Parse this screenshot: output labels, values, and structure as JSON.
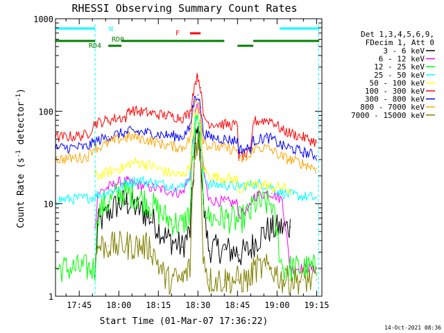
{
  "chart_data": {
    "type": "line",
    "title": "RHESSI Observing Summary Count Rates",
    "xlabel": "Start Time (01-Mar-07 17:36:22)",
    "ylabel": "Count Rate (s-1 detector-1)",
    "ylabel_parts": {
      "pre": "Count Rate (s",
      "sup1": "-1",
      "mid": " detector",
      "sup2": "-1",
      "post": ")"
    },
    "yscale": "log",
    "ylim": [
      1,
      1000
    ],
    "xlim_minutes": [
      1056,
      1157
    ],
    "x_ticks": [
      {
        "label": "17:45",
        "value": 1065
      },
      {
        "label": "18:00",
        "value": 1080
      },
      {
        "label": "18:15",
        "value": 1095
      },
      {
        "label": "18:30",
        "value": 1110
      },
      {
        "label": "18:45",
        "value": 1125
      },
      {
        "label": "19:00",
        "value": 1140
      },
      {
        "label": "19:15",
        "value": 1155
      }
    ],
    "y_ticks": [
      {
        "label": "1",
        "value": 1
      },
      {
        "label": "10",
        "value": 10
      },
      {
        "label": "100",
        "value": 100
      },
      {
        "label": "1000",
        "value": 1000
      }
    ],
    "legend_header": [
      "Det 1,3,4,5,6,9,",
      "FDecim 1, Att 0"
    ],
    "legend_position": "right",
    "timestamp": "14-Oct-2021 08:36",
    "flags": [
      {
        "label": "N",
        "color": "#00ffff",
        "segments": [
          [
            1056,
            1071
          ],
          [
            1141,
            1156
          ]
        ]
      },
      {
        "label": "F",
        "color": "#ff0000",
        "segments": [
          [
            1107,
            1111
          ]
        ]
      },
      {
        "label": "RD0",
        "color": "#008000",
        "segments": [
          [
            1081,
            1120
          ]
        ]
      },
      {
        "label": "RD4",
        "color": "#008000",
        "segments": [
          [
            1056,
            1071
          ],
          [
            1076,
            1081
          ],
          [
            1125,
            1131
          ],
          [
            1131,
            1156
          ]
        ]
      }
    ],
    "dashed_lines": [
      1071,
      1155.7
    ],
    "x": [
      1056,
      1068,
      1071,
      1072,
      1076,
      1080,
      1083,
      1083.5,
      1087,
      1092,
      1098,
      1104,
      1107,
      1108,
      1109,
      1110,
      1111,
      1112,
      1114,
      1120,
      1125,
      1125.5,
      1130,
      1131,
      1136,
      1138,
      1142,
      1145,
      1150,
      1155
    ],
    "series": [
      {
        "name": "3 - 6 keV",
        "color": "#000000",
        "values": [
          null,
          null,
          1.6,
          6.0,
          8.0,
          10.0,
          10.5,
          10.0,
          9.0,
          7.0,
          4.3,
          3.4,
          5.0,
          15.0,
          45.0,
          60.0,
          38.0,
          10.0,
          3.3,
          3.2,
          3.0,
          2.8,
          3.2,
          3.7,
          5.2,
          5.3,
          5.5,
          5.6,
          null,
          null
        ]
      },
      {
        "name": "6 - 12 keV",
        "color": "#ff00ff",
        "values": [
          null,
          null,
          5.5,
          13.0,
          15.0,
          17.0,
          17.5,
          17.0,
          16.0,
          15.0,
          14.0,
          13.0,
          20.0,
          45.0,
          90.0,
          120.0,
          80.0,
          25.0,
          11.0,
          10.5,
          10.0,
          7.5,
          9.0,
          12.0,
          13.0,
          13.0,
          11.0,
          2.0,
          2.0,
          2.0
        ]
      },
      {
        "name": "12 - 25 keV",
        "color": "#00ff00",
        "values": [
          2.0,
          2.0,
          2.0,
          8.0,
          10.5,
          13.0,
          13.2,
          13.0,
          12.0,
          10.0,
          7.0,
          5.8,
          8.0,
          30.0,
          65.0,
          75.0,
          50.0,
          12.0,
          7.0,
          7.0,
          6.5,
          6.5,
          8.0,
          10.0,
          10.0,
          10.0,
          2.0,
          2.0,
          2.0,
          2.0
        ]
      },
      {
        "name": "25 - 50 keV",
        "color": "#00ffff",
        "values": [
          11.0,
          11.5,
          12.0,
          12.5,
          13.5,
          14.5,
          17.0,
          17.0,
          18.0,
          17.0,
          16.0,
          15.0,
          20.0,
          50.0,
          80.0,
          90.0,
          60.0,
          22.0,
          16.0,
          16.0,
          15.5,
          15.5,
          16.0,
          16.5,
          16.0,
          15.0,
          13.0,
          12.5,
          12.0,
          11.5
        ]
      },
      {
        "name": "50 - 100 keV",
        "color": "#ffff00",
        "values": [
          null,
          null,
          20.0,
          20.0,
          22.0,
          24.0,
          25.0,
          27.0,
          28.0,
          26.0,
          22.0,
          20.0,
          25.0,
          55.0,
          90.0,
          100.0,
          65.0,
          25.0,
          20.0,
          19.0,
          18.0,
          14.0,
          16.0,
          16.0,
          16.0,
          15.0,
          15.0,
          14.0,
          null,
          null
        ]
      },
      {
        "name": "100 - 300 keV",
        "color": "#ff0000",
        "values": [
          52.0,
          55.0,
          75.0,
          75.0,
          80.0,
          85.0,
          85.0,
          105.0,
          100.0,
          95.0,
          90.0,
          85.0,
          95.0,
          150.0,
          210.0,
          240.0,
          180.0,
          90.0,
          75.0,
          72.0,
          70.0,
          32.0,
          35.0,
          78.0,
          80.0,
          80.0,
          62.0,
          58.0,
          52.0,
          46.0
        ]
      },
      {
        "name": "300 - 800 keV",
        "color": "#0000ff",
        "values": [
          40.0,
          41.0,
          47.0,
          48.0,
          53.0,
          57.0,
          58.0,
          60.0,
          60.0,
          58.0,
          55.0,
          53.0,
          65.0,
          110.0,
          145.0,
          150.0,
          110.0,
          60.0,
          53.0,
          50.0,
          48.0,
          38.0,
          40.0,
          48.0,
          52.0,
          50.0,
          42.0,
          40.0,
          36.0,
          33.0
        ]
      },
      {
        "name": "800 - 7000 keV",
        "color": "#ffa500",
        "values": [
          30.0,
          32.0,
          42.0,
          40.0,
          45.0,
          50.0,
          52.0,
          53.0,
          52.0,
          48.0,
          43.0,
          40.0,
          50.0,
          90.0,
          130.0,
          140.0,
          95.0,
          50.0,
          42.0,
          40.0,
          38.0,
          30.0,
          32.0,
          40.0,
          40.0,
          38.0,
          32.0,
          30.0,
          27.0,
          24.0
        ]
      },
      {
        "name": "7000 - 15000 keV",
        "color": "#808000",
        "values": [
          null,
          null,
          2.0,
          3.5,
          3.5,
          3.5,
          3.7,
          3.5,
          3.5,
          3.4,
          1.5,
          1.5,
          2.0,
          15.0,
          40.0,
          50.0,
          25.0,
          3.0,
          1.5,
          1.5,
          1.5,
          1.5,
          1.5,
          2.0,
          2.0,
          2.0,
          1.5,
          1.5,
          1.5,
          1.5
        ]
      }
    ]
  }
}
